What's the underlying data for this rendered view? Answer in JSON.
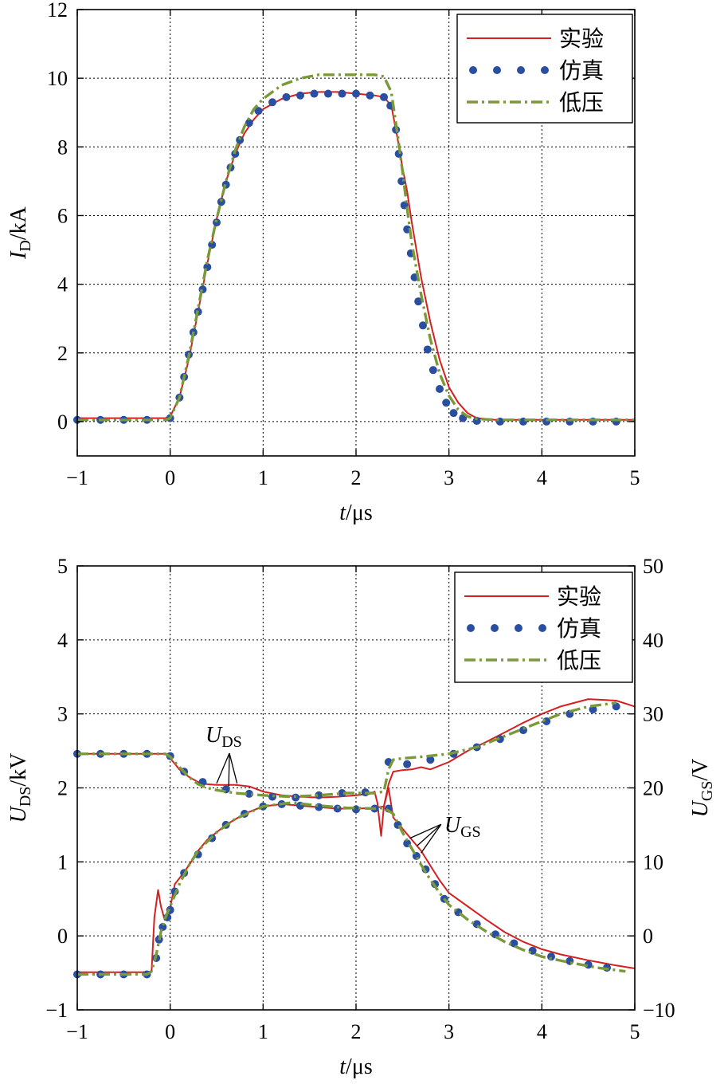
{
  "chart_data": [
    {
      "type": "line",
      "xlabel_italic": "t",
      "xlabel_unit": "/μs",
      "ylabel_main": "I",
      "ylabel_sub": "D",
      "ylabel_unit": "/kA",
      "xlim": [
        -1,
        5
      ],
      "ylim": [
        -1,
        12
      ],
      "xticks": [
        "−1",
        "0",
        "1",
        "2",
        "3",
        "4",
        "5"
      ],
      "yticks": [
        "0",
        "2",
        "4",
        "6",
        "8",
        "10",
        "12"
      ],
      "grid": true,
      "legend_position": "top-right",
      "legend": [
        {
          "label": "实验",
          "style": "solid",
          "color": "#d42020"
        },
        {
          "label": "仿真",
          "style": "dotted",
          "color": "#2a4fa0"
        },
        {
          "label": "低压",
          "style": "dashdot",
          "color": "#7a9a3a"
        }
      ],
      "series": [
        {
          "name": "实验",
          "x": [
            -1,
            -0.05,
            0,
            0.1,
            0.2,
            0.3,
            0.4,
            0.5,
            0.6,
            0.7,
            0.8,
            0.9,
            1.0,
            1.2,
            1.4,
            1.6,
            1.8,
            2.0,
            2.2,
            2.3,
            2.38,
            2.45,
            2.5,
            2.55,
            2.6,
            2.7,
            2.8,
            2.9,
            3.0,
            3.1,
            3.2,
            3.3,
            3.5,
            4.0,
            5.0
          ],
          "y": [
            0.1,
            0.1,
            0.15,
            0.7,
            1.8,
            3.2,
            4.6,
            5.9,
            7.0,
            7.8,
            8.4,
            8.8,
            9.1,
            9.4,
            9.55,
            9.6,
            9.6,
            9.55,
            9.5,
            9.45,
            9.2,
            8.2,
            7.4,
            6.7,
            5.8,
            4.2,
            2.9,
            1.8,
            1.0,
            0.55,
            0.25,
            0.1,
            0.05,
            0.05,
            0.05
          ]
        },
        {
          "name": "仿真",
          "x": [
            -1,
            -0.75,
            -0.5,
            -0.25,
            0,
            0.1,
            0.15,
            0.2,
            0.25,
            0.3,
            0.35,
            0.4,
            0.45,
            0.5,
            0.55,
            0.6,
            0.65,
            0.7,
            0.75,
            0.85,
            0.95,
            1.1,
            1.25,
            1.4,
            1.55,
            1.7,
            1.85,
            2.0,
            2.15,
            2.3,
            2.37,
            2.43,
            2.46,
            2.49,
            2.52,
            2.55,
            2.59,
            2.63,
            2.67,
            2.72,
            2.77,
            2.83,
            2.9,
            2.97,
            3.05,
            3.15,
            3.3,
            3.55,
            3.8,
            4.05,
            4.3,
            4.55,
            4.8
          ],
          "y": [
            0.05,
            0.05,
            0.05,
            0.05,
            0.1,
            0.7,
            1.3,
            1.95,
            2.6,
            3.2,
            3.85,
            4.5,
            5.15,
            5.8,
            6.4,
            6.9,
            7.4,
            7.8,
            8.2,
            8.7,
            9.05,
            9.3,
            9.45,
            9.5,
            9.55,
            9.55,
            9.55,
            9.55,
            9.5,
            9.45,
            9.2,
            8.5,
            7.8,
            7.0,
            6.3,
            5.6,
            4.9,
            4.2,
            3.5,
            2.8,
            2.1,
            1.5,
            0.95,
            0.55,
            0.25,
            0.1,
            0.02,
            0.0,
            0.0,
            0.0,
            0.0,
            0.0,
            0.0
          ]
        },
        {
          "name": "低压",
          "x": [
            -1,
            -0.05,
            0,
            0.1,
            0.2,
            0.3,
            0.4,
            0.5,
            0.6,
            0.7,
            0.8,
            0.9,
            1.0,
            1.2,
            1.4,
            1.6,
            1.8,
            2.0,
            2.2,
            2.3,
            2.38,
            2.45,
            2.5,
            2.55,
            2.6,
            2.7,
            2.8,
            2.9,
            3.0,
            3.1,
            3.2,
            3.3,
            3.5,
            4.0,
            5.0
          ],
          "y": [
            0.05,
            0.05,
            0.1,
            0.7,
            1.9,
            3.3,
            4.7,
            5.9,
            7.0,
            7.9,
            8.6,
            9.1,
            9.4,
            9.8,
            10.0,
            10.1,
            10.1,
            10.1,
            10.1,
            10.05,
            9.6,
            8.3,
            7.3,
            6.2,
            5.2,
            3.7,
            2.4,
            1.4,
            0.75,
            0.35,
            0.15,
            0.08,
            0.05,
            0.05,
            0.05
          ]
        }
      ]
    },
    {
      "type": "line",
      "xlabel_italic": "t",
      "xlabel_unit": "/μs",
      "ylabel_main": "U",
      "ylabel_sub": "DS",
      "ylabel_unit": "/kV",
      "y2label_main": "U",
      "y2label_sub": "GS",
      "y2label_unit": "/V",
      "xlim": [
        -1,
        5
      ],
      "ylim": [
        -1,
        5
      ],
      "y2lim": [
        -10,
        50
      ],
      "xticks": [
        "−1",
        "0",
        "1",
        "2",
        "3",
        "4",
        "5"
      ],
      "yticks": [
        "−1",
        "0",
        "1",
        "2",
        "3",
        "4",
        "5"
      ],
      "y2ticks": [
        "−10",
        "0",
        "10",
        "20",
        "30",
        "40",
        "50"
      ],
      "grid": true,
      "legend_position": "top-right",
      "legend": [
        {
          "label": "实验",
          "style": "solid",
          "color": "#d42020"
        },
        {
          "label": "仿真",
          "style": "dotted",
          "color": "#2a4fa0"
        },
        {
          "label": "低压",
          "style": "dashdot",
          "color": "#7a9a3a"
        }
      ],
      "annotations": [
        {
          "main": "U",
          "sub": "DS",
          "x": 0.38,
          "y": 2.62,
          "arrows": [
            [
              0.5,
              2.06
            ],
            [
              0.63,
              2.02
            ],
            [
              0.72,
              2.06
            ]
          ]
        },
        {
          "main": "U",
          "sub": "GS",
          "x": 2.95,
          "y": 1.4,
          "arrows": [
            [
              2.58,
              1.32
            ],
            [
              2.66,
              1.22
            ],
            [
              2.7,
              1.12
            ]
          ]
        }
      ],
      "series": [
        {
          "name": "实验 U_DS",
          "x": [
            -1,
            -0.2,
            -0.05,
            0,
            0.1,
            0.2,
            0.3,
            0.4,
            0.5,
            0.7,
            0.85,
            1.0,
            1.2,
            1.4,
            1.6,
            1.8,
            2.0,
            2.15,
            2.2,
            2.23,
            2.27,
            2.3,
            2.35,
            2.4,
            2.5,
            2.6,
            2.7,
            2.8,
            3.0,
            3.2,
            3.4,
            3.6,
            3.8,
            4.0,
            4.2,
            4.5,
            4.8,
            5.0
          ],
          "y": [
            2.46,
            2.46,
            2.46,
            2.4,
            2.25,
            2.15,
            2.08,
            2.05,
            2.04,
            2.04,
            2.02,
            1.95,
            1.9,
            1.88,
            1.87,
            1.88,
            1.9,
            1.92,
            1.95,
            1.8,
            1.35,
            1.75,
            2.05,
            2.22,
            2.24,
            2.25,
            2.28,
            2.25,
            2.35,
            2.5,
            2.62,
            2.75,
            2.88,
            3.0,
            3.1,
            3.2,
            3.18,
            3.1
          ]
        },
        {
          "name": "仿真 U_DS",
          "x": [
            -1,
            -0.75,
            -0.5,
            -0.25,
            0,
            0.15,
            0.35,
            0.6,
            0.85,
            1.1,
            1.35,
            1.6,
            1.85,
            2.1,
            2.35,
            2.55,
            2.8,
            3.05,
            3.3,
            3.55,
            3.8,
            4.05,
            4.3,
            4.55,
            4.8
          ],
          "y": [
            2.46,
            2.46,
            2.46,
            2.46,
            2.43,
            2.22,
            2.08,
            1.98,
            1.92,
            1.88,
            1.87,
            1.9,
            1.93,
            1.94,
            2.35,
            2.32,
            2.38,
            2.46,
            2.55,
            2.66,
            2.78,
            2.9,
            3.0,
            3.06,
            3.1
          ]
        },
        {
          "name": "低压 U_DS",
          "x": [
            -1,
            -0.05,
            0,
            0.1,
            0.2,
            0.3,
            0.4,
            0.5,
            0.7,
            1.0,
            1.3,
            1.6,
            1.9,
            2.2,
            2.3,
            2.35,
            2.4,
            2.5,
            2.7,
            3.0,
            3.3,
            3.6,
            3.9,
            4.2,
            4.5,
            4.8
          ],
          "y": [
            2.46,
            2.46,
            2.42,
            2.28,
            2.15,
            2.05,
            2.0,
            1.97,
            1.93,
            1.9,
            1.88,
            1.9,
            1.93,
            1.93,
            1.95,
            2.25,
            2.38,
            2.4,
            2.42,
            2.46,
            2.55,
            2.7,
            2.85,
            3.0,
            3.1,
            3.15
          ]
        },
        {
          "name": "实验 U_GS",
          "x": [
            -1,
            -0.3,
            -0.2,
            -0.17,
            -0.13,
            -0.1,
            -0.06,
            0,
            0.05,
            0.1,
            0.2,
            0.3,
            0.4,
            0.6,
            0.8,
            1.0,
            1.2,
            1.4,
            1.6,
            1.8,
            2.0,
            2.2,
            2.3,
            2.35,
            2.4,
            2.5,
            2.6,
            2.7,
            2.8,
            2.9,
            3.0,
            3.2,
            3.4,
            3.6,
            3.8,
            4.0,
            4.2,
            4.5,
            4.8,
            5.0
          ],
          "y": [
            -4.9,
            -4.9,
            -4.8,
            2.5,
            6.2,
            4.0,
            2.2,
            3.8,
            7.0,
            7.8,
            9.5,
            11.5,
            13.0,
            15.0,
            16.5,
            17.5,
            17.8,
            17.6,
            17.4,
            17.2,
            17.2,
            17.3,
            17.5,
            20.0,
            16.0,
            14.5,
            13.0,
            11.5,
            9.5,
            7.5,
            5.8,
            4.0,
            2.2,
            0.5,
            -0.8,
            -1.8,
            -2.5,
            -3.3,
            -4.0,
            -4.4
          ]
        },
        {
          "name": "仿真 U_GS",
          "x": [
            -1,
            -0.75,
            -0.5,
            -0.25,
            -0.15,
            -0.12,
            -0.08,
            -0.03,
            0,
            0.05,
            0.15,
            0.3,
            0.45,
            0.6,
            0.8,
            1.0,
            1.2,
            1.4,
            1.6,
            1.8,
            2.0,
            2.2,
            2.35,
            2.45,
            2.55,
            2.65,
            2.75,
            2.85,
            2.95,
            3.1,
            3.3,
            3.5,
            3.7,
            3.9,
            4.1,
            4.3,
            4.5,
            4.7
          ],
          "y": [
            -5.2,
            -5.2,
            -5.2,
            -5.2,
            -3.0,
            -0.5,
            1.2,
            2.5,
            3.5,
            6.0,
            8.5,
            11.0,
            13.2,
            15.0,
            16.5,
            17.5,
            17.8,
            17.6,
            17.4,
            17.2,
            17.1,
            17.2,
            17.2,
            15.0,
            12.5,
            10.8,
            9.0,
            7.0,
            5.0,
            3.2,
            1.6,
            0.2,
            -1.0,
            -2.0,
            -2.8,
            -3.4,
            -3.9,
            -4.3
          ]
        },
        {
          "name": "低压 U_GS",
          "x": [
            -1,
            -0.25,
            -0.2,
            -0.15,
            -0.1,
            -0.05,
            0,
            0.1,
            0.2,
            0.3,
            0.5,
            0.7,
            1.0,
            1.3,
            1.6,
            1.9,
            2.2,
            2.3,
            2.4,
            2.5,
            2.6,
            2.7,
            2.8,
            2.9,
            3.0,
            3.2,
            3.4,
            3.6,
            3.8,
            4.0,
            4.3,
            4.6,
            4.9
          ],
          "y": [
            -5.2,
            -5.2,
            -4.8,
            -2.5,
            0.5,
            2.5,
            4.0,
            7.0,
            9.5,
            11.5,
            14.0,
            15.8,
            17.5,
            18.0,
            17.6,
            17.3,
            17.2,
            17.3,
            16.5,
            14.0,
            11.8,
            9.6,
            7.6,
            5.8,
            4.2,
            2.2,
            0.6,
            -0.8,
            -1.9,
            -2.8,
            -3.6,
            -4.3,
            -4.8
          ]
        }
      ]
    }
  ]
}
